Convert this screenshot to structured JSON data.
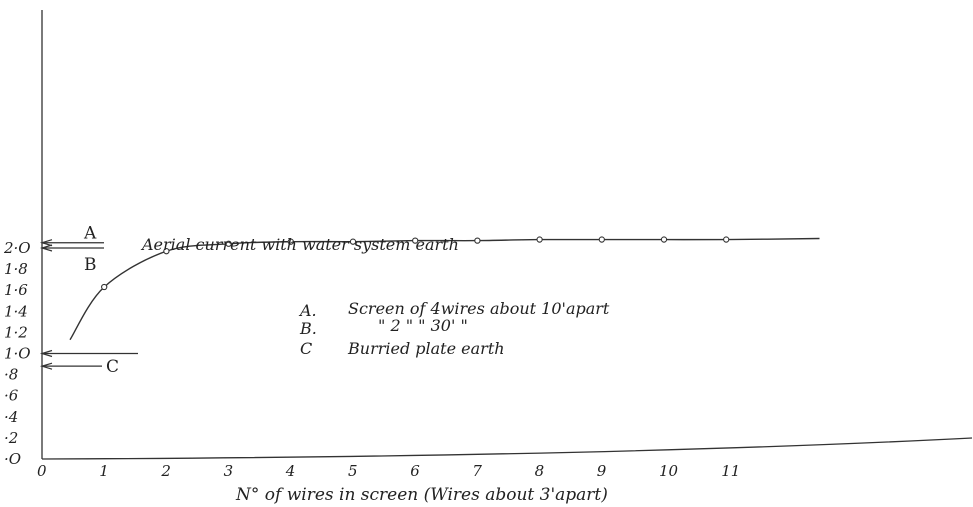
{
  "chart_data": {
    "type": "line",
    "title": "",
    "xlabel": "N° of wires in screen  (Wires about 3'apart)",
    "ylabel": "",
    "xlim": [
      0,
      12.5
    ],
    "ylim": [
      0,
      2.2
    ],
    "x_ticks": [
      "0",
      "1",
      "2",
      "3",
      "4",
      "5",
      "6",
      "7",
      "8",
      "9",
      "10",
      "11"
    ],
    "y_ticks": [
      "·O",
      "·2",
      "·4",
      "·6",
      "·8",
      "1·O",
      "1·2",
      "1·4",
      "1·6",
      "1·8",
      "2·O"
    ],
    "grid": false,
    "series": [
      {
        "x": [
          1,
          2,
          3,
          4,
          5,
          6,
          7,
          8,
          9,
          10,
          11
        ],
        "y": [
          1.63,
          1.97,
          2.04,
          2.06,
          2.06,
          2.07,
          2.07,
          2.08,
          2.08,
          2.08,
          2.08
        ]
      }
    ],
    "curve_start": {
      "x": 0.45,
      "y": 1.13
    },
    "curve_end": {
      "x": 12.5,
      "y": 2.09
    },
    "reference_lines": [
      {
        "marker": "A",
        "y": 2.05
      },
      {
        "marker": "B",
        "y": 2.0
      },
      {
        "marker": "C",
        "y": 0.88
      }
    ],
    "annotations": {
      "water_system": {
        "text": "Aerial current with water system earth",
        "y": 1.0
      },
      "legend": [
        {
          "key": "A.",
          "text": "Screen of 4wires about 10'apart"
        },
        {
          "key": "B.",
          "text": "\"   2  \"   \"   30'  \""
        },
        {
          "key": "C",
          "text": "Burried plate earth"
        }
      ]
    }
  }
}
